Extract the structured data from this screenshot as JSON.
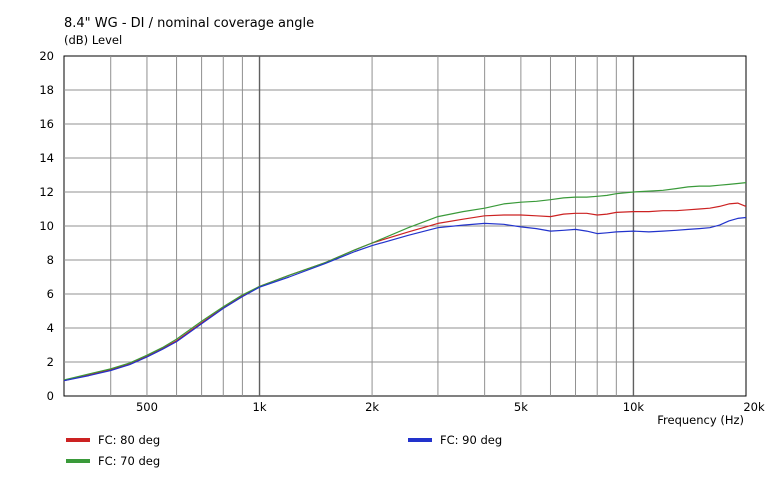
{
  "chart_data": {
    "type": "line",
    "title": "8.4\" WG - DI / nominal coverage angle",
    "ylabel": "(dB)  Level",
    "xlabel": "Frequency  (Hz)",
    "x_scale": "log",
    "xlim": [
      300,
      20000
    ],
    "ylim": [
      0,
      20
    ],
    "grid": true,
    "legend_position": "bottom",
    "y_ticks": [
      {
        "value": 0,
        "label": "0"
      },
      {
        "value": 2,
        "label": "2"
      },
      {
        "value": 4,
        "label": "4"
      },
      {
        "value": 6,
        "label": "6"
      },
      {
        "value": 8,
        "label": "8"
      },
      {
        "value": 10,
        "label": "10"
      },
      {
        "value": 12,
        "label": "12"
      },
      {
        "value": 14,
        "label": "14"
      },
      {
        "value": 16,
        "label": "16"
      },
      {
        "value": 18,
        "label": "18"
      },
      {
        "value": 20,
        "label": "20"
      }
    ],
    "x_ticks": [
      {
        "value": 500,
        "label": "500"
      },
      {
        "value": 1000,
        "label": "1k"
      },
      {
        "value": 2000,
        "label": "2k"
      },
      {
        "value": 5000,
        "label": "5k"
      },
      {
        "value": 10000,
        "label": "10k"
      },
      {
        "value": 20000,
        "label": "20k"
      }
    ],
    "x_gridlines": [
      400,
      500,
      600,
      700,
      800,
      900,
      1000,
      2000,
      3000,
      4000,
      5000,
      6000,
      7000,
      8000,
      9000,
      10000
    ],
    "series": [
      {
        "name": "FC: 80 deg",
        "color": "#cc2222",
        "x": [
          300,
          350,
          400,
          450,
          500,
          550,
          600,
          700,
          800,
          900,
          1000,
          1200,
          1500,
          1800,
          2000,
          2500,
          3000,
          3500,
          4000,
          4500,
          5000,
          5500,
          6000,
          6500,
          7000,
          7500,
          8000,
          8500,
          9000,
          10000,
          11000,
          12000,
          13000,
          14000,
          15000,
          16000,
          17000,
          18000,
          19000,
          20000
        ],
        "y": [
          0.9,
          1.25,
          1.55,
          1.9,
          2.35,
          2.8,
          3.25,
          4.3,
          5.2,
          5.9,
          6.45,
          7.1,
          7.85,
          8.6,
          9.0,
          9.65,
          10.15,
          10.4,
          10.6,
          10.65,
          10.65,
          10.6,
          10.55,
          10.7,
          10.75,
          10.75,
          10.65,
          10.7,
          10.8,
          10.85,
          10.85,
          10.9,
          10.9,
          10.95,
          11.0,
          11.05,
          11.15,
          11.3,
          11.35,
          11.15
        ]
      },
      {
        "name": "FC: 70 deg",
        "color": "#3a9a3a",
        "x": [
          300,
          350,
          400,
          450,
          500,
          550,
          600,
          700,
          800,
          900,
          1000,
          1200,
          1500,
          1800,
          2000,
          2500,
          3000,
          3500,
          4000,
          4500,
          5000,
          5500,
          6000,
          6500,
          7000,
          7500,
          8000,
          8500,
          9000,
          10000,
          11000,
          12000,
          13000,
          14000,
          15000,
          16000,
          17000,
          18000,
          19000,
          20000
        ],
        "y": [
          0.95,
          1.3,
          1.6,
          1.95,
          2.4,
          2.85,
          3.35,
          4.4,
          5.25,
          5.95,
          6.45,
          7.1,
          7.85,
          8.6,
          9.0,
          9.9,
          10.55,
          10.85,
          11.05,
          11.3,
          11.4,
          11.45,
          11.55,
          11.65,
          11.7,
          11.7,
          11.75,
          11.8,
          11.9,
          12.0,
          12.05,
          12.1,
          12.2,
          12.3,
          12.35,
          12.35,
          12.4,
          12.45,
          12.5,
          12.55
        ]
      },
      {
        "name": "FC: 90 deg",
        "color": "#2233cc",
        "x": [
          300,
          350,
          400,
          450,
          500,
          550,
          600,
          700,
          800,
          900,
          1000,
          1200,
          1500,
          1800,
          2000,
          2500,
          3000,
          3500,
          4000,
          4500,
          5000,
          5500,
          6000,
          6500,
          7000,
          7500,
          8000,
          8500,
          9000,
          10000,
          11000,
          12000,
          13000,
          14000,
          15000,
          16000,
          17000,
          18000,
          19000,
          20000
        ],
        "y": [
          0.9,
          1.2,
          1.5,
          1.85,
          2.3,
          2.75,
          3.2,
          4.25,
          5.15,
          5.85,
          6.4,
          7.0,
          7.8,
          8.5,
          8.85,
          9.45,
          9.9,
          10.05,
          10.15,
          10.1,
          9.95,
          9.85,
          9.7,
          9.75,
          9.8,
          9.7,
          9.55,
          9.6,
          9.65,
          9.7,
          9.65,
          9.7,
          9.75,
          9.8,
          9.85,
          9.9,
          10.05,
          10.3,
          10.45,
          10.5
        ]
      }
    ],
    "legend": [
      {
        "label": "FC: 80 deg",
        "color": "#cc2222"
      },
      {
        "label": "FC: 90 deg",
        "color": "#2233cc"
      },
      {
        "label": "FC: 70 deg",
        "color": "#3a9a3a"
      }
    ]
  }
}
